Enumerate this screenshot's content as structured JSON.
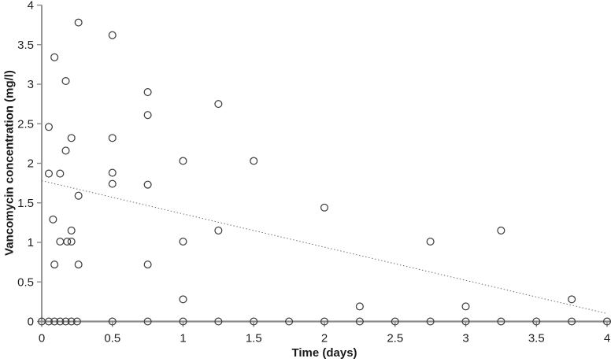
{
  "chart_data": {
    "type": "scatter",
    "title": "",
    "xlabel": "Time (days)",
    "ylabel": "Vancomycin concentration (mg/l)",
    "xlim": [
      0,
      4
    ],
    "ylim": [
      0,
      4
    ],
    "x_ticks": [
      0,
      0.5,
      1,
      1.5,
      2,
      2.5,
      3,
      3.5,
      4
    ],
    "y_ticks": [
      0,
      0.5,
      1,
      1.5,
      2,
      2.5,
      3,
      3.5,
      4
    ],
    "grid": false,
    "legend": "none",
    "axis_color": "#8a8a8a",
    "text_color": "#1f1f1f",
    "marker": {
      "shape": "open-circle",
      "stroke_color": "#3f3f3f",
      "fill": "none",
      "radius_px": 4.4
    },
    "trend_line": {
      "style": "dotted",
      "color": "#707070",
      "x_start": 0,
      "y_start": 1.78,
      "x_end": 4,
      "y_end": 0.1
    },
    "points": [
      [
        0,
        0
      ],
      [
        0.05,
        2.46
      ],
      [
        0.05,
        1.87
      ],
      [
        0.05,
        0
      ],
      [
        0.08,
        1.29
      ],
      [
        0.09,
        3.34
      ],
      [
        0.09,
        0.72
      ],
      [
        0.09,
        0
      ],
      [
        0.13,
        1.87
      ],
      [
        0.13,
        1.01
      ],
      [
        0.13,
        0
      ],
      [
        0.17,
        3.04
      ],
      [
        0.17,
        2.16
      ],
      [
        0.17,
        0
      ],
      [
        0.18,
        1.01
      ],
      [
        0.21,
        2.32
      ],
      [
        0.21,
        1.15
      ],
      [
        0.21,
        1.01
      ],
      [
        0.21,
        0
      ],
      [
        0.25,
        0
      ],
      [
        0.26,
        3.78
      ],
      [
        0.26,
        1.59
      ],
      [
        0.26,
        0.72
      ],
      [
        0.5,
        3.62
      ],
      [
        0.5,
        2.32
      ],
      [
        0.5,
        1.88
      ],
      [
        0.5,
        1.74
      ],
      [
        0.5,
        0
      ],
      [
        0.75,
        2.9
      ],
      [
        0.75,
        2.61
      ],
      [
        0.75,
        1.73
      ],
      [
        0.75,
        0.72
      ],
      [
        0.75,
        0
      ],
      [
        1.0,
        2.03
      ],
      [
        1.0,
        1.01
      ],
      [
        1.0,
        0.28
      ],
      [
        1.0,
        0
      ],
      [
        1.25,
        2.75
      ],
      [
        1.25,
        1.15
      ],
      [
        1.25,
        0
      ],
      [
        1.5,
        2.03
      ],
      [
        1.5,
        0
      ],
      [
        1.75,
        0
      ],
      [
        2.0,
        1.44
      ],
      [
        2.0,
        0
      ],
      [
        2.25,
        0.19
      ],
      [
        2.25,
        0
      ],
      [
        2.5,
        0
      ],
      [
        2.75,
        1.01
      ],
      [
        2.75,
        0
      ],
      [
        3.0,
        0.19
      ],
      [
        3.0,
        0
      ],
      [
        3.25,
        1.15
      ],
      [
        3.25,
        0
      ],
      [
        3.5,
        0
      ],
      [
        3.75,
        0.28
      ],
      [
        3.75,
        0
      ],
      [
        4.0,
        0
      ]
    ]
  }
}
